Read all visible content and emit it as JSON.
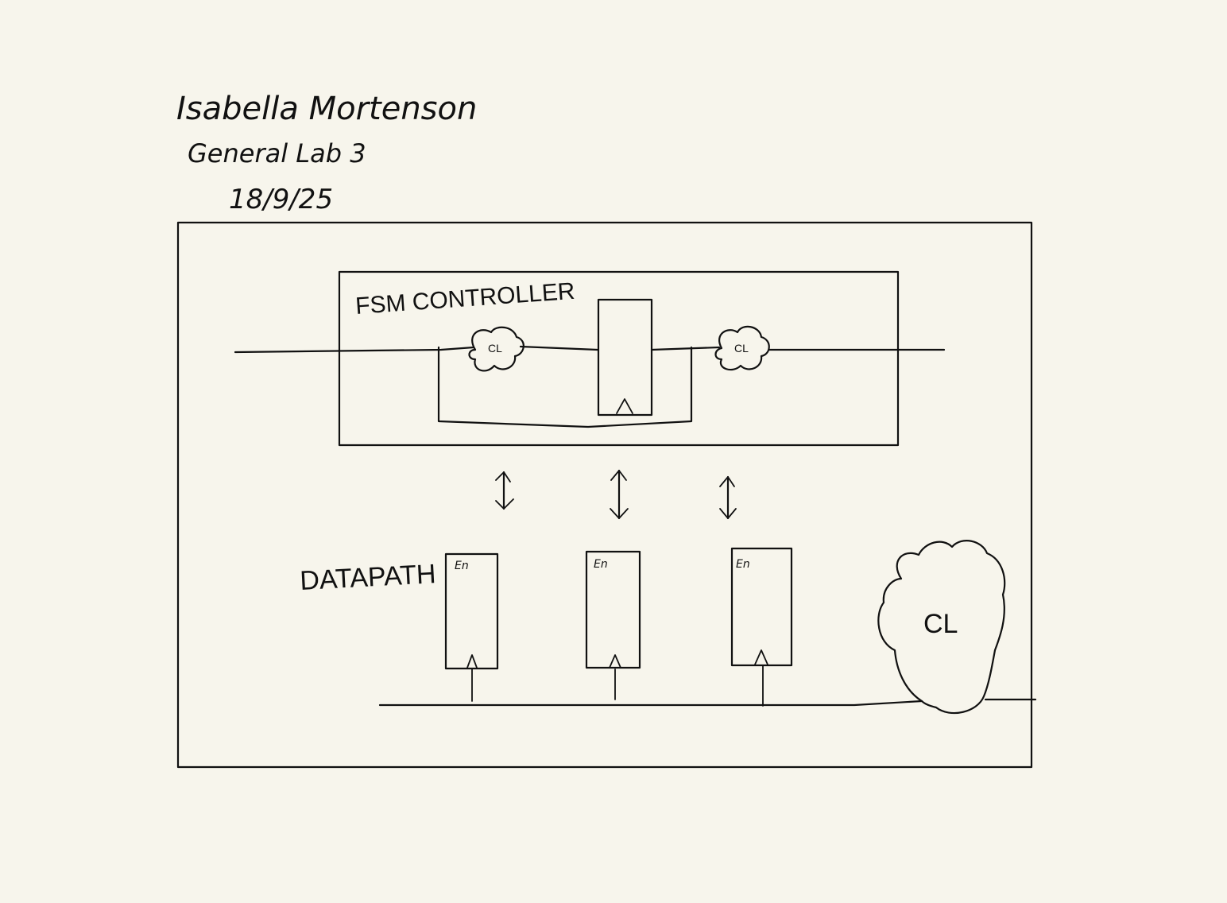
{
  "header": {
    "name": "Isabella Mortenson",
    "course": "General Lab 3",
    "date": "18/9/25"
  },
  "fsm": {
    "label": "FSM CONTROLLER",
    "cloud_left_label": "CL",
    "cloud_right_label": "CL"
  },
  "datapath": {
    "label": "DATAPATH",
    "registers": [
      {
        "enable_label": "En"
      },
      {
        "enable_label": "En"
      },
      {
        "enable_label": "En"
      }
    ],
    "cloud_label": "CL"
  },
  "colors": {
    "paper": "#f7f5ec",
    "ink": "#111111"
  }
}
